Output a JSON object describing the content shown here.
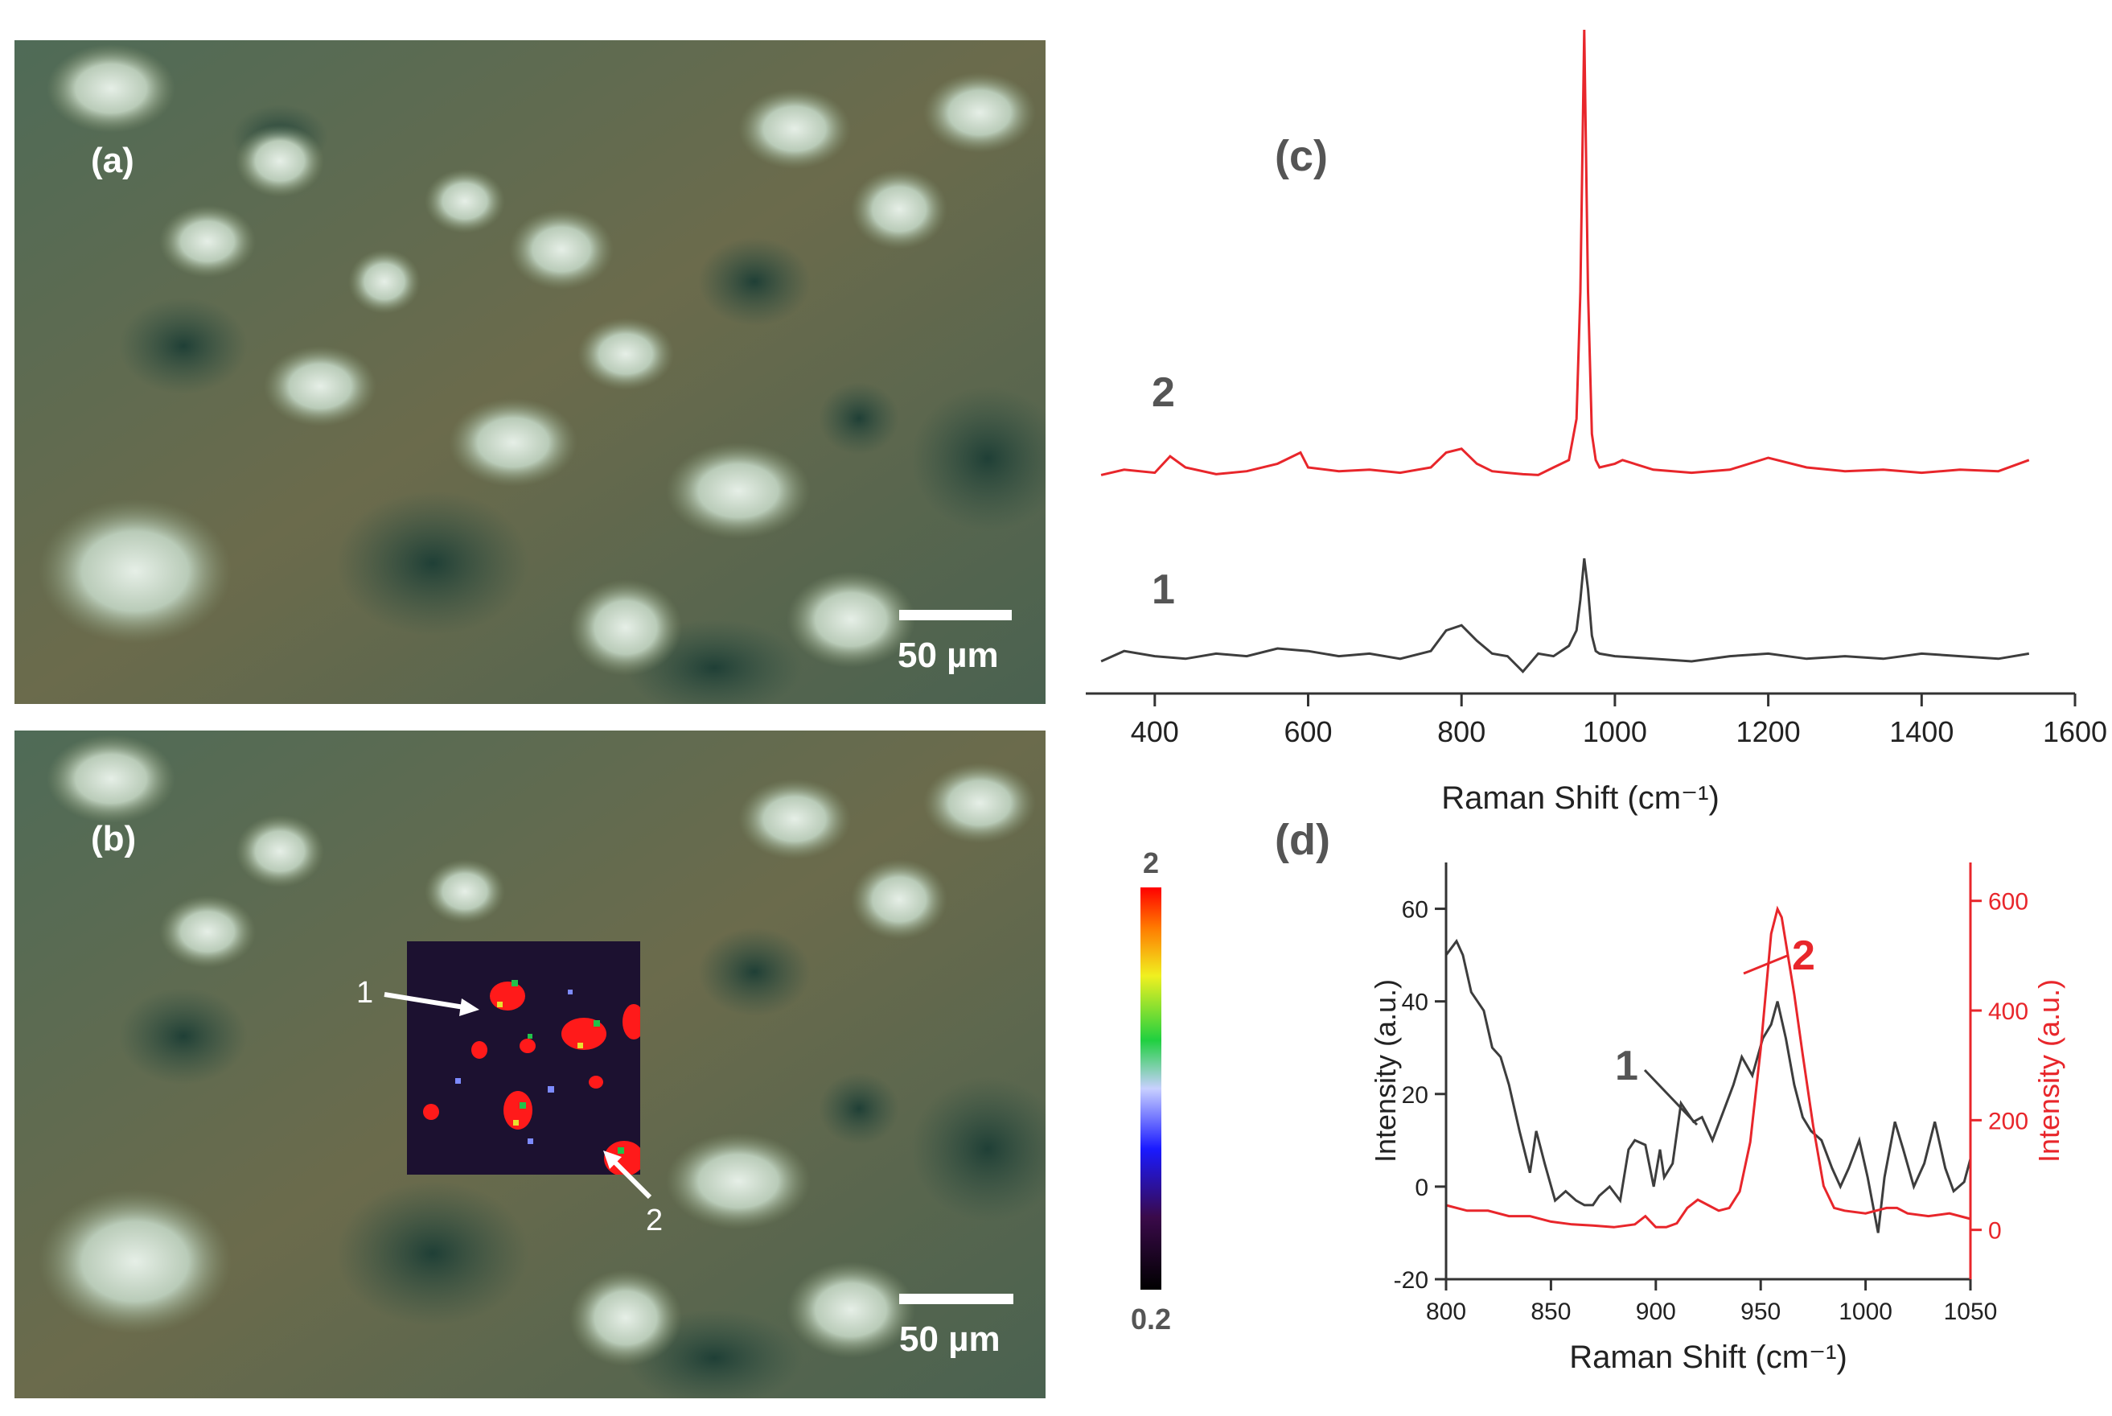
{
  "panels": {
    "a": {
      "label": "(a)",
      "scale": "50 µm"
    },
    "b": {
      "label": "(b)",
      "scale": "50 µm",
      "point1": "1",
      "point2": "2"
    },
    "c": {
      "label": "(c)"
    },
    "d": {
      "label": "(d)"
    }
  },
  "colorbar": {
    "max_label": "2",
    "min_label": "0.2"
  },
  "colors": {
    "spectrum_1": "#3d3d3d",
    "spectrum_2": "#e8262b"
  },
  "chart_data": [
    {
      "type": "line",
      "panel": "(c)",
      "xlabel": "Raman Shift (cm⁻¹)",
      "ylabel": "",
      "xlim": [
        310,
        1600
      ],
      "xticks": [
        400,
        600,
        800,
        1000,
        1200,
        1400,
        1600
      ],
      "y_axis_shown": false,
      "offsets_between_spectra": true,
      "series": [
        {
          "name": "1",
          "x": [
            330,
            360,
            400,
            440,
            480,
            520,
            560,
            600,
            640,
            680,
            720,
            760,
            780,
            800,
            820,
            840,
            860,
            880,
            900,
            920,
            940,
            950,
            955,
            960,
            965,
            970,
            975,
            980,
            1000,
            1050,
            1100,
            1150,
            1200,
            1250,
            1300,
            1350,
            1400,
            1450,
            1500,
            1540
          ],
          "y": [
            0,
            4,
            2,
            1,
            3,
            2,
            5,
            4,
            2,
            3,
            1,
            4,
            12,
            14,
            8,
            3,
            2,
            -4,
            3,
            2,
            6,
            12,
            24,
            40,
            28,
            10,
            4,
            3,
            2,
            1,
            0,
            2,
            3,
            1,
            2,
            1,
            3,
            2,
            1,
            3
          ]
        },
        {
          "name": "2",
          "x": [
            330,
            360,
            400,
            420,
            440,
            480,
            520,
            560,
            590,
            600,
            640,
            680,
            720,
            760,
            780,
            800,
            820,
            840,
            860,
            880,
            900,
            920,
            940,
            950,
            955,
            960,
            965,
            970,
            975,
            980,
            1000,
            1010,
            1050,
            1100,
            1150,
            1200,
            1250,
            1300,
            1350,
            1400,
            1450,
            1500,
            1540
          ],
          "y": [
            5,
            12,
            8,
            30,
            15,
            6,
            10,
            20,
            35,
            15,
            10,
            12,
            8,
            15,
            35,
            40,
            20,
            10,
            8,
            6,
            5,
            15,
            25,
            80,
            250,
            600,
            250,
            60,
            25,
            15,
            20,
            25,
            12,
            8,
            12,
            28,
            15,
            10,
            12,
            8,
            12,
            10,
            25
          ]
        }
      ]
    },
    {
      "type": "line",
      "panel": "(d)",
      "xlabel": "Raman Shift (cm⁻¹)",
      "ylabel": "Intensity (a.u.)",
      "y2label": "Intensity (a.u.)",
      "xlim": [
        800,
        1050
      ],
      "ylim": [
        -20,
        70
      ],
      "y2lim": [
        -90,
        670
      ],
      "xticks": [
        800,
        850,
        900,
        950,
        1000,
        1050
      ],
      "yticks": [
        -20,
        0,
        20,
        40,
        60
      ],
      "y2ticks": [
        0,
        200,
        400,
        600
      ],
      "annotations": [
        "1",
        "2"
      ],
      "series": [
        {
          "name": "1",
          "axis": "left",
          "x": [
            800,
            805,
            808,
            812,
            818,
            822,
            826,
            830,
            835,
            840,
            843,
            847,
            852,
            857,
            862,
            866,
            870,
            873,
            878,
            883,
            887,
            890,
            895,
            899,
            902,
            904,
            908,
            912,
            918,
            922,
            927,
            932,
            937,
            941,
            946,
            951,
            955,
            958,
            962,
            966,
            970,
            974,
            979,
            984,
            988,
            992,
            997,
            1001,
            1006,
            1009,
            1014,
            1018,
            1023,
            1028,
            1033,
            1038,
            1042,
            1047,
            1050
          ],
          "y": [
            50,
            53,
            50,
            42,
            38,
            30,
            28,
            22,
            12,
            3,
            12,
            5,
            -3,
            -1,
            -3,
            -4,
            -4,
            -2,
            0,
            -3,
            8,
            10,
            9,
            0,
            8,
            2,
            5,
            18,
            14,
            15,
            10,
            16,
            22,
            28,
            24,
            32,
            35,
            40,
            32,
            22,
            15,
            12,
            10,
            4,
            0,
            4,
            10,
            2,
            -10,
            2,
            14,
            8,
            0,
            5,
            14,
            4,
            -1,
            1,
            6
          ]
        },
        {
          "name": "2",
          "axis": "right",
          "x": [
            800,
            810,
            820,
            830,
            840,
            850,
            860,
            870,
            880,
            890,
            895,
            900,
            905,
            910,
            915,
            920,
            925,
            930,
            935,
            940,
            945,
            950,
            955,
            958,
            960,
            963,
            966,
            970,
            975,
            980,
            985,
            990,
            1000,
            1010,
            1015,
            1020,
            1030,
            1040,
            1050
          ],
          "y": [
            45,
            35,
            35,
            25,
            25,
            15,
            10,
            8,
            5,
            10,
            25,
            5,
            5,
            12,
            40,
            55,
            45,
            35,
            40,
            70,
            160,
            330,
            540,
            585,
            570,
            500,
            430,
            320,
            190,
            80,
            40,
            35,
            30,
            40,
            40,
            30,
            25,
            30,
            20
          ]
        }
      ]
    }
  ]
}
